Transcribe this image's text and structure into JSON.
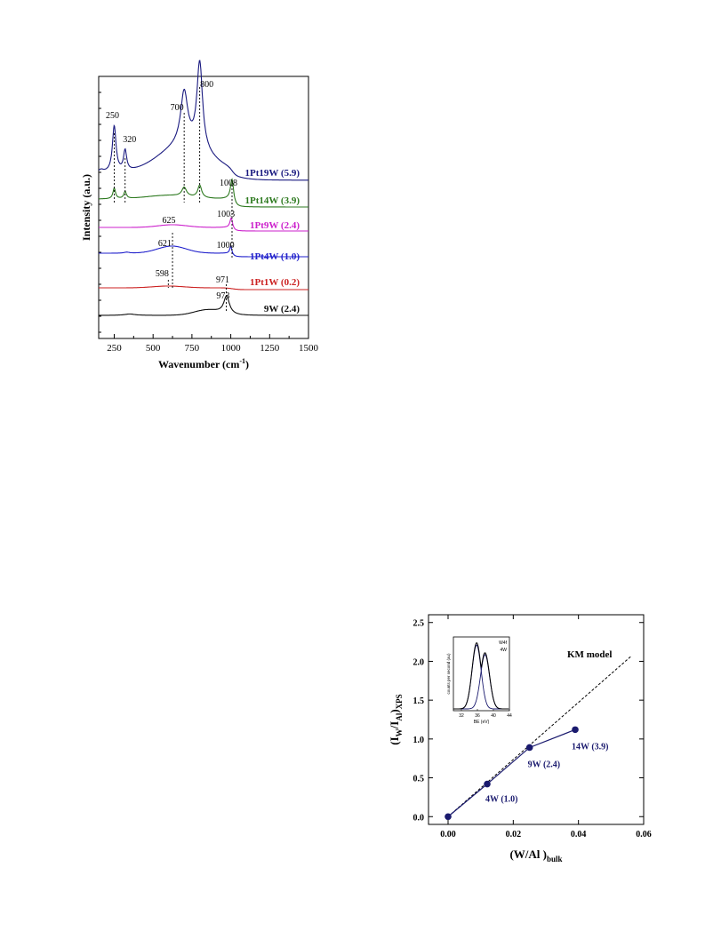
{
  "chart_data": [
    {
      "type": "line",
      "xlabel": "Wavenumber (cm",
      "xlabel_sup": "-1",
      "xlabel_end": ")",
      "ylabel": "Intensity (a.u.)",
      "xlim": [
        150,
        1500
      ],
      "xticks": [
        250,
        500,
        750,
        1000,
        1250,
        1500
      ],
      "series": [
        {
          "name": "1Pt19W (5.9)",
          "color": "#1a1a80"
        },
        {
          "name": "1Pt14W (3.9)",
          "color": "#2e7a20"
        },
        {
          "name": "1Pt9W (2.4)",
          "color": "#cc22cc"
        },
        {
          "name": "1Pt4W (1.0)",
          "color": "#2222cc"
        },
        {
          "name": "1Pt1W (0.2)",
          "color": "#cc2222"
        },
        {
          "name": "9W (2.4)",
          "color": "#111111"
        }
      ],
      "annotations": [
        {
          "text": "250",
          "x": 250
        },
        {
          "text": "320",
          "x": 320
        },
        {
          "text": "700",
          "x": 700
        },
        {
          "text": "800",
          "x": 800
        },
        {
          "text": "1008",
          "x": 1008
        },
        {
          "text": "625",
          "x": 625
        },
        {
          "text": "1003",
          "x": 1003
        },
        {
          "text": "621",
          "x": 621
        },
        {
          "text": "1000",
          "x": 1000
        },
        {
          "text": "598",
          "x": 598
        },
        {
          "text": "971",
          "x": 971
        },
        {
          "text": "973",
          "x": 973
        }
      ]
    },
    {
      "type": "scatter",
      "xlabel": "(W/Al )",
      "xlabel_sub": "bulk",
      "ylabel_parts": [
        "(I",
        "W",
        "/I",
        "Al",
        ")",
        "XPS"
      ],
      "xlim": [
        -0.006,
        0.06
      ],
      "ylim": [
        -0.1,
        2.6
      ],
      "xticks": [
        "0.00",
        "0.02",
        "0.04",
        "0.06"
      ],
      "yticks": [
        "0.0",
        "0.5",
        "1.0",
        "1.5",
        "2.0",
        "2.5"
      ],
      "points": [
        {
          "x": 0.0,
          "y": 0.0,
          "label": ""
        },
        {
          "x": 0.012,
          "y": 0.42,
          "label": "4W (1.0)"
        },
        {
          "x": 0.025,
          "y": 0.89,
          "label": "9W (2.4)"
        },
        {
          "x": 0.039,
          "y": 1.12,
          "label": "14W (3.9)"
        }
      ],
      "model_line": {
        "label": "KM model",
        "x": [
          0.0,
          0.056
        ],
        "y": [
          0.0,
          2.06
        ]
      },
      "point_color": "#1a1a6e",
      "inset": {
        "xlabel": "BE (eV)",
        "ylabel": "counts per second (au)",
        "xticks": [
          "32",
          "36",
          "40",
          "44"
        ],
        "legend": [
          "W4f",
          "4W"
        ]
      }
    }
  ]
}
